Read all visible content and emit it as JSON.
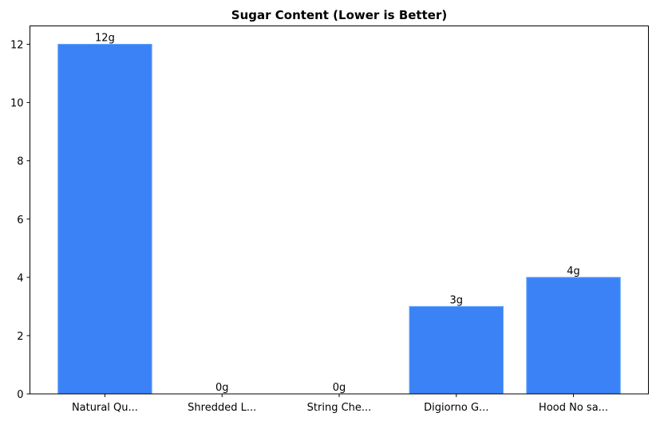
{
  "chart_data": {
    "type": "bar",
    "title": "Sugar Content (Lower is Better)",
    "xlabel": "",
    "ylabel": "",
    "categories": [
      "Natural Qu...",
      "Shredded L...",
      "String Che...",
      "Digiorno G...",
      "Hood No sa..."
    ],
    "values": [
      12,
      0,
      0,
      3,
      4
    ],
    "data_labels": [
      "12g",
      "0g",
      "0g",
      "3g",
      "4g"
    ],
    "ylim": [
      0,
      12.63
    ],
    "yticks": [
      0,
      2,
      4,
      6,
      8,
      10,
      12
    ],
    "grid": false,
    "bar_color": "#3b82f6",
    "bar_edge_color": "#60a5fa"
  }
}
